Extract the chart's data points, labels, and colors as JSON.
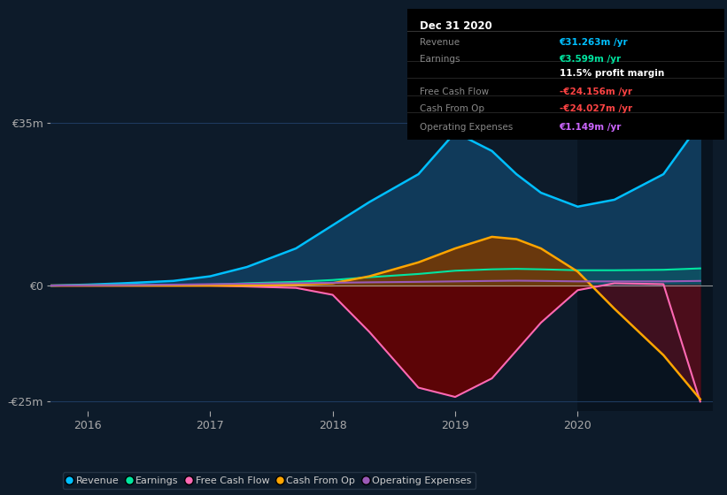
{
  "bg_color": "#0d1b2a",
  "plot_bg_color": "#0d1b2a",
  "x_years": [
    2015.7,
    2016.0,
    2016.3,
    2016.7,
    2017.0,
    2017.3,
    2017.7,
    2018.0,
    2018.3,
    2018.7,
    2019.0,
    2019.3,
    2019.5,
    2019.7,
    2020.0,
    2020.3,
    2020.7,
    2021.0
  ],
  "revenue": [
    0.0,
    0.2,
    0.5,
    1.0,
    2.0,
    4.0,
    8.0,
    13.0,
    18.0,
    24.0,
    33.0,
    29.0,
    24.0,
    20.0,
    17.0,
    18.5,
    24.0,
    35.0
  ],
  "earnings": [
    0.0,
    0.05,
    0.1,
    0.15,
    0.2,
    0.5,
    0.8,
    1.2,
    1.8,
    2.5,
    3.2,
    3.5,
    3.6,
    3.5,
    3.3,
    3.3,
    3.4,
    3.7
  ],
  "free_cash_flow": [
    0.0,
    0.0,
    0.0,
    0.0,
    0.0,
    -0.2,
    -0.5,
    -2.0,
    -10.0,
    -22.0,
    -24.0,
    -20.0,
    -14.0,
    -8.0,
    -1.0,
    0.5,
    0.3,
    -25.0
  ],
  "cash_from_op": [
    0.0,
    0.0,
    0.0,
    0.0,
    0.0,
    0.0,
    0.2,
    0.5,
    2.0,
    5.0,
    8.0,
    10.5,
    10.0,
    8.0,
    3.0,
    -5.0,
    -15.0,
    -24.5
  ],
  "operating_exp": [
    0.0,
    0.05,
    0.1,
    0.2,
    0.3,
    0.4,
    0.5,
    0.6,
    0.7,
    0.8,
    0.9,
    1.0,
    1.05,
    1.0,
    0.9,
    0.9,
    0.9,
    1.0
  ],
  "revenue_color": "#00bfff",
  "earnings_color": "#00e5a0",
  "fcf_color": "#ff69b4",
  "cashop_color": "#ffa500",
  "opex_color": "#9b59b6",
  "ylim": [
    -27,
    37
  ],
  "yticks": [
    -25,
    0,
    35
  ],
  "ytick_labels": [
    "-€25m",
    "€0",
    "€35m"
  ],
  "xticks": [
    2016,
    2017,
    2018,
    2019,
    2020
  ],
  "xlim_left": 2015.7,
  "xlim_right": 2021.1,
  "vline_x": 2020.0,
  "legend_items": [
    {
      "label": "Revenue",
      "color": "#00bfff"
    },
    {
      "label": "Earnings",
      "color": "#00e5a0"
    },
    {
      "label": "Free Cash Flow",
      "color": "#ff69b4"
    },
    {
      "label": "Cash From Op",
      "color": "#ffa500"
    },
    {
      "label": "Operating Expenses",
      "color": "#9b59b6"
    }
  ],
  "info_box": {
    "title": "Dec 31 2020",
    "rows": [
      {
        "label": "Revenue",
        "value": "€31.263m /yr",
        "label_color": "#888888",
        "value_color": "#00bfff"
      },
      {
        "label": "Earnings",
        "value": "€3.599m /yr",
        "label_color": "#888888",
        "value_color": "#00e5a0"
      },
      {
        "label": "",
        "value": "11.5% profit margin",
        "label_color": "#888888",
        "value_color": "#ffffff"
      },
      {
        "label": "Free Cash Flow",
        "value": "-€24.156m /yr",
        "label_color": "#888888",
        "value_color": "#ff4444"
      },
      {
        "label": "Cash From Op",
        "value": "-€24.027m /yr",
        "label_color": "#888888",
        "value_color": "#ff4444"
      },
      {
        "label": "Operating Expenses",
        "value": "€1.149m /yr",
        "label_color": "#888888",
        "value_color": "#cc66ff"
      }
    ]
  }
}
